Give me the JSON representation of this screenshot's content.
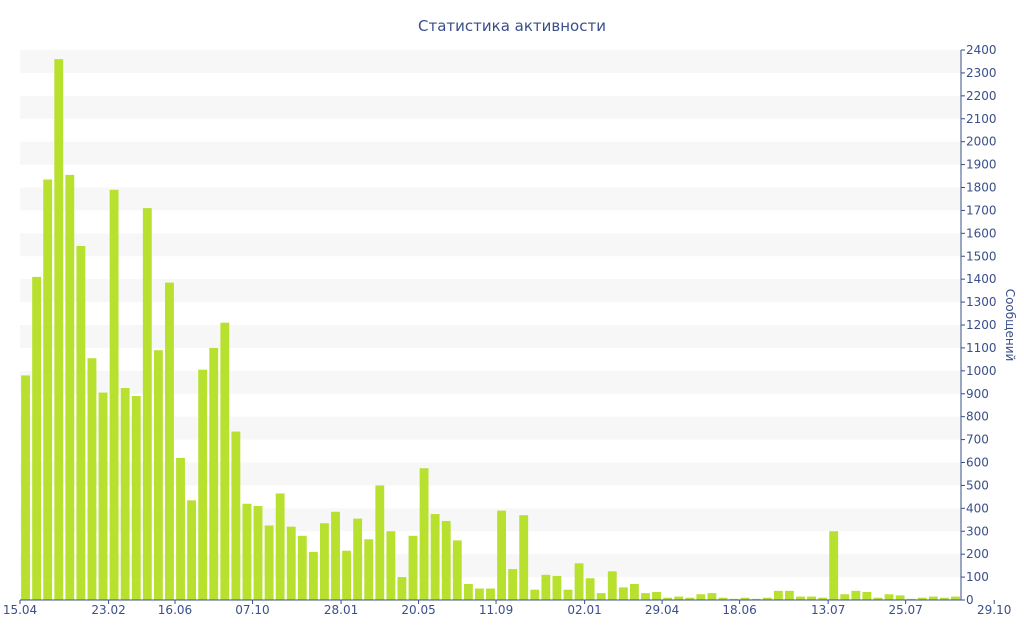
{
  "chart_data": {
    "type": "bar",
    "title": "Статистика активности",
    "ylabel": "Сообщений",
    "xlabel": "",
    "ylim": [
      0,
      2400
    ],
    "yticks": [
      0,
      100,
      200,
      300,
      400,
      500,
      600,
      700,
      800,
      900,
      1000,
      1100,
      1200,
      1300,
      1400,
      1500,
      1600,
      1700,
      1800,
      1900,
      2000,
      2100,
      2200,
      2300,
      2400
    ],
    "x_tick_labels": [
      {
        "label": "15.04",
        "index": 0
      },
      {
        "label": "23.02",
        "index": 8
      },
      {
        "label": "16.06",
        "index": 14
      },
      {
        "label": "07.10",
        "index": 21
      },
      {
        "label": "28.01",
        "index": 29
      },
      {
        "label": "20.05",
        "index": 36
      },
      {
        "label": "11.09",
        "index": 43
      },
      {
        "label": "02.01",
        "index": 51
      },
      {
        "label": "29.04",
        "index": 58
      },
      {
        "label": "18.06",
        "index": 65
      },
      {
        "label": "13.07",
        "index": 73
      },
      {
        "label": "25.07",
        "index": 80
      },
      {
        "label": "29.10",
        "index": 88
      }
    ],
    "values": [
      980,
      1410,
      1835,
      2360,
      1855,
      1545,
      1055,
      905,
      1790,
      925,
      890,
      1710,
      1090,
      1385,
      620,
      435,
      1005,
      1100,
      1210,
      735,
      420,
      410,
      325,
      465,
      320,
      280,
      210,
      335,
      385,
      215,
      355,
      265,
      500,
      300,
      100,
      280,
      575,
      375,
      345,
      260,
      70,
      50,
      50,
      390,
      135,
      370,
      45,
      110,
      105,
      45,
      160,
      95,
      30,
      125,
      55,
      70,
      30,
      35,
      10,
      15,
      10,
      25,
      30,
      10,
      5,
      10,
      5,
      10,
      40,
      40,
      15,
      15,
      10,
      300,
      25,
      40,
      35,
      10,
      25,
      20,
      5,
      10,
      15,
      10,
      15
    ],
    "colors": {
      "bar": "#b8e02e",
      "band": "#f7f7f7",
      "text": "#3a4f8a",
      "axis": "#3a4f8a"
    },
    "grid": "horizontal alternating bands",
    "y_axis_position": "right"
  }
}
